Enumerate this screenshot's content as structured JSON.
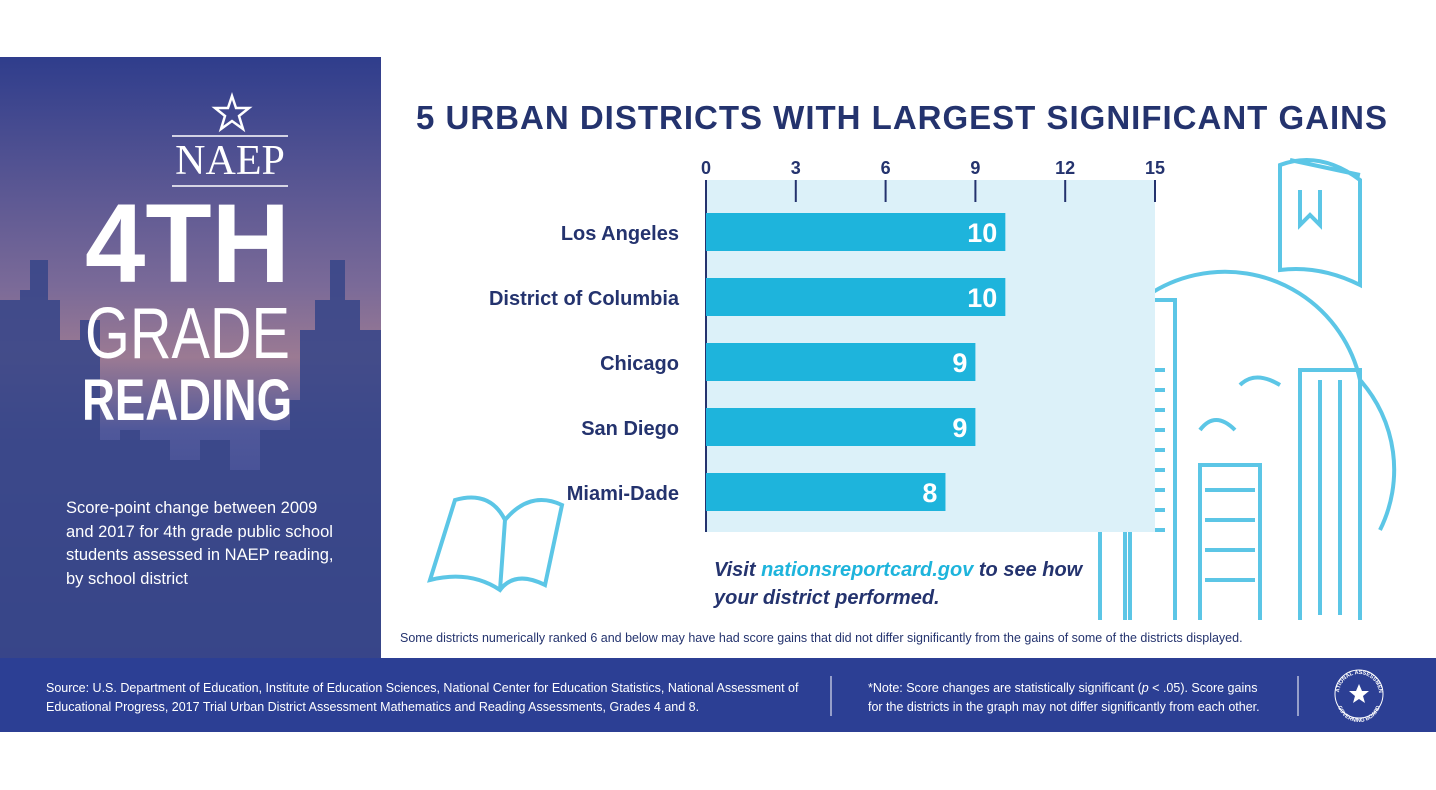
{
  "chart_data": {
    "type": "bar",
    "orientation": "horizontal",
    "title": "5 URBAN DISTRICTS WITH LARGEST SIGNIFICANT GAINS",
    "categories": [
      "Los Angeles",
      "District of Columbia",
      "Chicago",
      "San Diego",
      "Miami-Dade"
    ],
    "values": [
      10,
      10,
      9,
      9,
      8
    ],
    "color": "#1eb4dc",
    "xlim": [
      0,
      15
    ],
    "xticks": [
      0,
      3,
      6,
      9,
      12,
      15
    ]
  },
  "panel": {
    "logo": "NAEP",
    "grade": "4TH",
    "word1": "GRADE",
    "word2": "READING",
    "description": "Score-point change between 2009 and 2017 for 4th grade public school students assessed in NAEP reading, by school district"
  },
  "visit": {
    "before": "Visit ",
    "link": "nationsreportcard.gov",
    "after": " to see how your district performed."
  },
  "caveat": "Some districts numerically ranked 6 and below may have had score gains that did not differ significantly from the gains of some of the districts displayed.",
  "footer": {
    "source": "Source: U.S. Department of Education, Institute of Education Sciences, National Center for Education Statistics, National Assessment of Educational Progress, 2017 Trial Urban District Assessment Mathematics and Reading Assessments, Grades 4 and 8.",
    "note_before": "*Note: Score changes are statistically significant (",
    "note_italic": "p",
    "note_after": " < .05). Score gains for the districts in the graph may not differ significantly from each other.",
    "seal_top": "NATIONAL ASSESSMENT",
    "seal_bottom": "GOVERNING BOARD"
  }
}
